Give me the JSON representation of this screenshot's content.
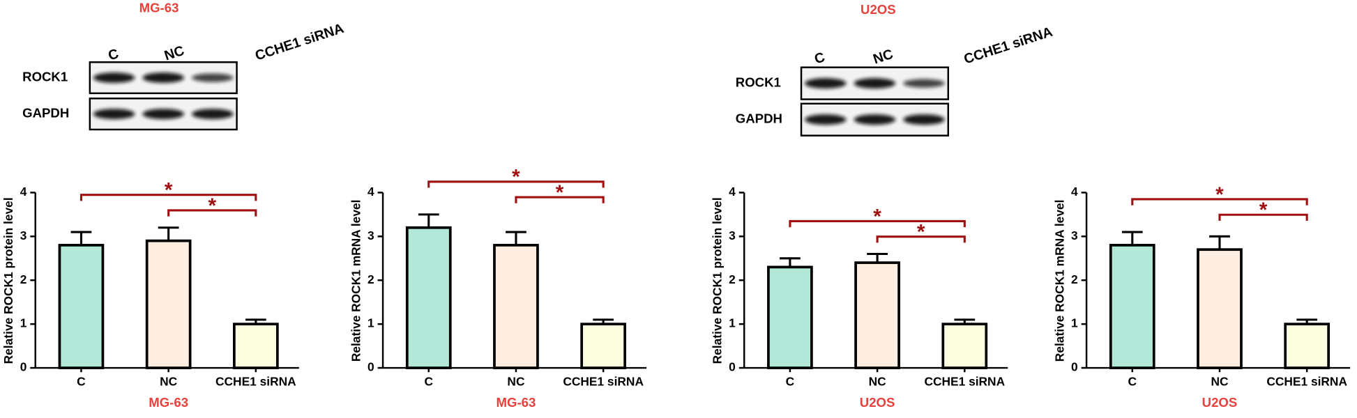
{
  "blots": [
    {
      "title": "MG-63",
      "lanes": [
        "C",
        "NC",
        "CCHE1 siRNA"
      ],
      "rows": [
        "ROCK1",
        "GAPDH"
      ]
    },
    {
      "title": "U2OS",
      "lanes": [
        "C",
        "NC",
        "CCHE1 siRNA"
      ],
      "rows": [
        "ROCK1",
        "GAPDH"
      ]
    }
  ],
  "chart_data": [
    {
      "type": "bar",
      "ylabel": "Relative ROCK1 protein level",
      "xlabel": "MG-63",
      "categories": [
        "C",
        "NC",
        "CCHE1 siRNA"
      ],
      "values": [
        2.8,
        2.9,
        1.0
      ],
      "errors": [
        0.3,
        0.3,
        0.1
      ],
      "colors": [
        "#b3e8d8",
        "#fdeee1",
        "#fdfde0"
      ],
      "ylim": [
        0,
        4
      ],
      "yticks": [
        0,
        1,
        2,
        3,
        4
      ],
      "annotations": [
        {
          "text": "*",
          "between": [
            "C",
            "CCHE1 siRNA"
          ]
        },
        {
          "text": "*",
          "between": [
            "NC",
            "CCHE1 siRNA"
          ]
        }
      ]
    },
    {
      "type": "bar",
      "ylabel": "Relative ROCK1 mRNA level",
      "xlabel": "MG-63",
      "categories": [
        "C",
        "NC",
        "CCHE1 siRNA"
      ],
      "values": [
        3.2,
        2.8,
        1.0
      ],
      "errors": [
        0.3,
        0.3,
        0.1
      ],
      "colors": [
        "#b3e8d8",
        "#fdeee1",
        "#fdfde0"
      ],
      "ylim": [
        0,
        4
      ],
      "yticks": [
        0,
        1,
        2,
        3,
        4
      ],
      "annotations": [
        {
          "text": "*",
          "between": [
            "C",
            "CCHE1 siRNA"
          ]
        },
        {
          "text": "*",
          "between": [
            "NC",
            "CCHE1 siRNA"
          ]
        }
      ]
    },
    {
      "type": "bar",
      "ylabel": "Relative ROCK1 protein level",
      "xlabel": "U2OS",
      "categories": [
        "C",
        "NC",
        "CCHE1 siRNA"
      ],
      "values": [
        2.3,
        2.4,
        1.0
      ],
      "errors": [
        0.2,
        0.2,
        0.1
      ],
      "colors": [
        "#b3e8d8",
        "#fdeee1",
        "#fdfde0"
      ],
      "ylim": [
        0,
        4
      ],
      "yticks": [
        0,
        1,
        2,
        3,
        4
      ],
      "annotations": [
        {
          "text": "*",
          "between": [
            "C",
            "CCHE1 siRNA"
          ]
        },
        {
          "text": "*",
          "between": [
            "NC",
            "CCHE1 siRNA"
          ]
        }
      ]
    },
    {
      "type": "bar",
      "ylabel": "Relative ROCK1 mRNA level",
      "xlabel": "U2OS",
      "categories": [
        "C",
        "NC",
        "CCHE1 siRNA"
      ],
      "values": [
        2.8,
        2.7,
        1.0
      ],
      "errors": [
        0.3,
        0.3,
        0.1
      ],
      "colors": [
        "#b3e8d8",
        "#fdeee1",
        "#fdfde0"
      ],
      "ylim": [
        0,
        4
      ],
      "yticks": [
        0,
        1,
        2,
        3,
        4
      ],
      "annotations": [
        {
          "text": "*",
          "between": [
            "C",
            "CCHE1 siRNA"
          ]
        },
        {
          "text": "*",
          "between": [
            "NC",
            "CCHE1 siRNA"
          ]
        }
      ]
    }
  ]
}
